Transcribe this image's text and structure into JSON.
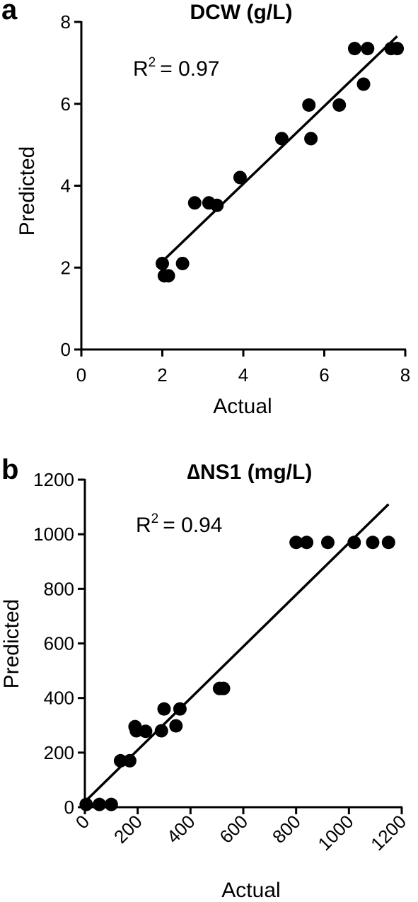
{
  "chart_data": [
    {
      "type": "scatter",
      "panel": "a",
      "title": "DCW (g/L)",
      "xlabel": "Actual",
      "ylabel": "Predicted",
      "r2_label": "= 0.97",
      "xlim": [
        0,
        8
      ],
      "ylim": [
        0,
        8
      ],
      "xticks": [
        0,
        2,
        4,
        6,
        8
      ],
      "yticks": [
        0,
        2,
        4,
        6,
        8
      ],
      "fit_line": {
        "x": [
          2.0,
          7.8
        ],
        "y": [
          2.15,
          7.65
        ]
      },
      "points": [
        {
          "x": 2.0,
          "y": 2.1
        },
        {
          "x": 2.05,
          "y": 1.8
        },
        {
          "x": 2.15,
          "y": 1.8
        },
        {
          "x": 2.5,
          "y": 2.1
        },
        {
          "x": 2.8,
          "y": 3.58
        },
        {
          "x": 3.15,
          "y": 3.58
        },
        {
          "x": 3.35,
          "y": 3.52
        },
        {
          "x": 3.92,
          "y": 4.2
        },
        {
          "x": 4.95,
          "y": 5.15
        },
        {
          "x": 5.62,
          "y": 5.97
        },
        {
          "x": 5.67,
          "y": 5.15
        },
        {
          "x": 6.37,
          "y": 5.97
        },
        {
          "x": 6.75,
          "y": 7.35
        },
        {
          "x": 6.97,
          "y": 6.48
        },
        {
          "x": 7.07,
          "y": 7.35
        },
        {
          "x": 7.65,
          "y": 7.35
        },
        {
          "x": 7.8,
          "y": 7.35
        }
      ]
    },
    {
      "type": "scatter",
      "panel": "b",
      "title": "∆NS1 (mg/L)",
      "xlabel": "Actual",
      "ylabel": "Predicted",
      "r2_label": "= 0.94",
      "xlim": [
        0,
        1200
      ],
      "ylim": [
        0,
        1200
      ],
      "xticks": [
        0,
        200,
        400,
        600,
        800,
        1000,
        1200
      ],
      "yticks": [
        0,
        200,
        400,
        600,
        800,
        1000,
        1200
      ],
      "fit_line": {
        "x": [
          0,
          1150
        ],
        "y": [
          20,
          1110
        ]
      },
      "points": [
        {
          "x": 5,
          "y": 10
        },
        {
          "x": 55,
          "y": 10
        },
        {
          "x": 100,
          "y": 10
        },
        {
          "x": 135,
          "y": 170
        },
        {
          "x": 170,
          "y": 170
        },
        {
          "x": 190,
          "y": 295
        },
        {
          "x": 195,
          "y": 280
        },
        {
          "x": 230,
          "y": 278
        },
        {
          "x": 290,
          "y": 280
        },
        {
          "x": 300,
          "y": 360
        },
        {
          "x": 345,
          "y": 298
        },
        {
          "x": 360,
          "y": 360
        },
        {
          "x": 510,
          "y": 435
        },
        {
          "x": 525,
          "y": 435
        },
        {
          "x": 800,
          "y": 970
        },
        {
          "x": 840,
          "y": 970
        },
        {
          "x": 920,
          "y": 970
        },
        {
          "x": 1020,
          "y": 970
        },
        {
          "x": 1090,
          "y": 970
        },
        {
          "x": 1150,
          "y": 970
        }
      ]
    }
  ]
}
